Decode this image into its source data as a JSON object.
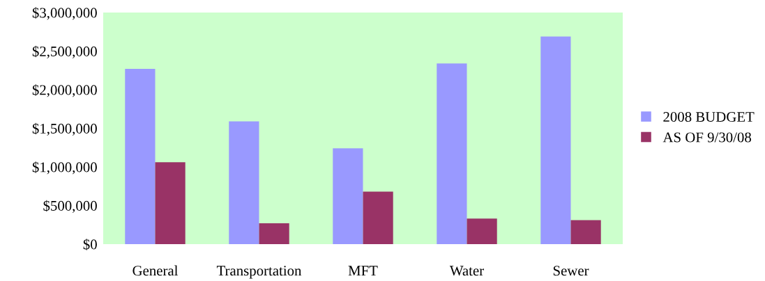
{
  "chart_data": {
    "type": "bar",
    "categories": [
      "General",
      "Transportation",
      "MFT",
      "Water",
      "Sewer"
    ],
    "series": [
      {
        "name": "2008 BUDGET",
        "color": "#9999ff",
        "values": [
          2270000,
          1590000,
          1240000,
          2340000,
          2690000
        ]
      },
      {
        "name": "AS OF 9/30/08",
        "color": "#993366",
        "values": [
          1060000,
          270000,
          680000,
          330000,
          310000
        ]
      }
    ],
    "ylim": [
      0,
      3000000
    ],
    "yticks": [
      {
        "value": 0,
        "label": "$0"
      },
      {
        "value": 500000,
        "label": "$500,000"
      },
      {
        "value": 1000000,
        "label": "$1,000,000"
      },
      {
        "value": 1500000,
        "label": "$1,500,000"
      },
      {
        "value": 2000000,
        "label": "$2,000,000"
      },
      {
        "value": 2500000,
        "label": "$2,500,000"
      },
      {
        "value": 3000000,
        "label": "$3,000,000"
      }
    ],
    "grid": false,
    "legend": "right"
  }
}
